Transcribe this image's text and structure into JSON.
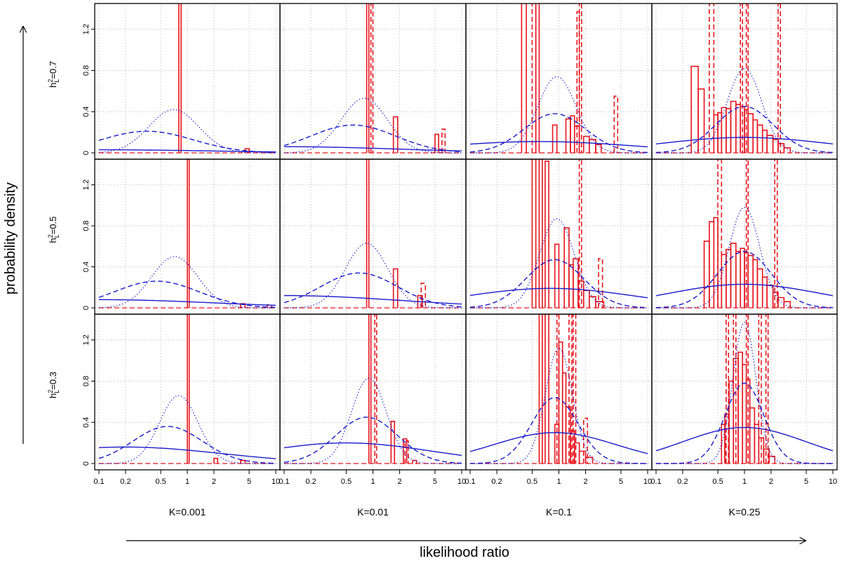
{
  "chart_data": {
    "type": "histogram-grid",
    "xlabel": "likelihood ratio",
    "ylabel": "probability density",
    "x_scale": "log",
    "xlim": [
      0.1,
      10
    ],
    "ylim": [
      0,
      1.45
    ],
    "x_ticks": [
      0.1,
      0.2,
      0.5,
      1,
      2,
      5,
      10
    ],
    "x_tick_labels": [
      "0.1",
      "0.2",
      "0.5",
      "1",
      "2",
      "5",
      "10"
    ],
    "y_ticks": [
      0,
      0.4,
      0.8,
      1.2
    ],
    "y_tick_labels": [
      "0",
      "0.4",
      "0.8",
      "1.2"
    ],
    "grid": true,
    "columns": [
      {
        "label": "K=0.001",
        "K": 0.001
      },
      {
        "label": "K=0.01",
        "K": 0.01
      },
      {
        "label": "K=0.1",
        "K": 0.1
      },
      {
        "label": "K=0.25",
        "K": 0.25
      }
    ],
    "rows": [
      {
        "label_base": "h",
        "label_sup": "2",
        "label_sub": "L",
        "label_value": "=0.7",
        "h2": 0.7
      },
      {
        "label_base": "h",
        "label_sup": "2",
        "label_sub": "L",
        "label_value": "=0.5",
        "h2": 0.5
      },
      {
        "label_base": "h",
        "label_sup": "2",
        "label_sub": "L",
        "label_value": "=0.3",
        "h2": 0.3
      }
    ],
    "colors": {
      "histogram": "#e8141c",
      "curve": "#1a1acc",
      "grid": "#9a9a9a"
    },
    "series_styles": [
      {
        "curve": "solid",
        "histogram": "solid"
      },
      {
        "curve": "dashed",
        "histogram": "dashed"
      },
      {
        "curve": "dotted"
      }
    ],
    "panels": [
      {
        "row": 0,
        "col": 0,
        "curves": [
          {
            "style": "dotted",
            "peak_x": 0.7,
            "peak_y": 0.42,
            "sigma": 0.65
          },
          {
            "style": "dashed",
            "peak_x": 0.35,
            "peak_y": 0.21,
            "sigma": 1.2
          },
          {
            "style": "solid",
            "peak_x": 0.1,
            "peak_y": 0.03,
            "sigma": 3.0
          }
        ],
        "hist_solid": [
          {
            "x0": 0.8,
            "x1": 0.85,
            "y": 1.5
          },
          {
            "x0": 4.5,
            "x1": 5,
            "y": 0.04
          }
        ],
        "hist_dashed": [
          {
            "x0": 4.5,
            "x1": 5,
            "y": 0.04
          }
        ]
      },
      {
        "row": 0,
        "col": 1,
        "curves": [
          {
            "style": "dotted",
            "peak_x": 0.8,
            "peak_y": 0.53,
            "sigma": 0.6
          },
          {
            "style": "dashed",
            "peak_x": 0.6,
            "peak_y": 0.27,
            "sigma": 1.1
          },
          {
            "style": "solid",
            "peak_x": 0.1,
            "peak_y": 0.06,
            "sigma": 3.0
          }
        ],
        "hist_solid": [
          {
            "x0": 0.85,
            "x1": 0.9,
            "y": 1.5
          },
          {
            "x0": 1.7,
            "x1": 1.9,
            "y": 0.35
          },
          {
            "x0": 5,
            "x1": 5.5,
            "y": 0.18
          }
        ],
        "hist_dashed": [
          {
            "x0": 0.95,
            "x1": 1.0,
            "y": 1.5
          },
          {
            "x0": 6,
            "x1": 6.5,
            "y": 0.23
          }
        ]
      },
      {
        "row": 0,
        "col": 2,
        "curves": [
          {
            "style": "dotted",
            "peak_x": 0.95,
            "peak_y": 0.74,
            "sigma": 0.5
          },
          {
            "style": "dashed",
            "peak_x": 0.9,
            "peak_y": 0.38,
            "sigma": 0.8
          },
          {
            "style": "solid",
            "peak_x": 0.6,
            "peak_y": 0.11,
            "sigma": 2.5
          }
        ],
        "hist_solid": [
          {
            "x0": 0.38,
            "x1": 0.43,
            "y": 1.5
          },
          {
            "x0": 0.55,
            "x1": 0.6,
            "y": 1.5
          },
          {
            "x0": 0.85,
            "x1": 0.95,
            "y": 0.27
          },
          {
            "x0": 1.2,
            "x1": 1.35,
            "y": 0.33
          },
          {
            "x0": 1.35,
            "x1": 1.5,
            "y": 0.36
          },
          {
            "x0": 1.5,
            "x1": 1.7,
            "y": 0.26
          },
          {
            "x0": 1.9,
            "x1": 2.2,
            "y": 0.16
          },
          {
            "x0": 2.2,
            "x1": 2.6,
            "y": 0.13
          },
          {
            "x0": 2.6,
            "x1": 3.0,
            "y": 0.08
          }
        ],
        "hist_dashed": [
          {
            "x0": 0.5,
            "x1": 0.55,
            "y": 1.5
          },
          {
            "x0": 1.6,
            "x1": 1.7,
            "y": 1.37
          },
          {
            "x0": 1.7,
            "x1": 1.8,
            "y": 1.5
          },
          {
            "x0": 4.2,
            "x1": 4.6,
            "y": 0.55
          }
        ]
      },
      {
        "row": 0,
        "col": 3,
        "curves": [
          {
            "style": "dotted",
            "peak_x": 1.0,
            "peak_y": 0.82,
            "sigma": 0.45
          },
          {
            "style": "dashed",
            "peak_x": 1.0,
            "peak_y": 0.45,
            "sigma": 0.75
          },
          {
            "style": "solid",
            "peak_x": 1.0,
            "peak_y": 0.15,
            "sigma": 2.2
          }
        ],
        "hist_solid": [
          {
            "x0": 0.25,
            "x1": 0.3,
            "y": 0.84
          },
          {
            "x0": 0.3,
            "x1": 0.35,
            "y": 0.62
          },
          {
            "x0": 0.45,
            "x1": 0.5,
            "y": 0.37
          },
          {
            "x0": 0.5,
            "x1": 0.55,
            "y": 0.39
          },
          {
            "x0": 0.55,
            "x1": 0.62,
            "y": 0.44
          },
          {
            "x0": 0.62,
            "x1": 0.7,
            "y": 0.43
          },
          {
            "x0": 0.7,
            "x1": 0.8,
            "y": 0.5
          },
          {
            "x0": 0.8,
            "x1": 0.9,
            "y": 0.47
          },
          {
            "x0": 0.9,
            "x1": 1.0,
            "y": 0.45
          },
          {
            "x0": 1.0,
            "x1": 1.1,
            "y": 0.42
          },
          {
            "x0": 1.1,
            "x1": 1.25,
            "y": 0.38
          },
          {
            "x0": 1.25,
            "x1": 1.4,
            "y": 0.32
          },
          {
            "x0": 1.4,
            "x1": 1.6,
            "y": 0.27
          },
          {
            "x0": 1.6,
            "x1": 1.8,
            "y": 0.22
          },
          {
            "x0": 1.8,
            "x1": 2.1,
            "y": 0.17
          },
          {
            "x0": 2.1,
            "x1": 2.4,
            "y": 0.13
          },
          {
            "x0": 2.4,
            "x1": 2.8,
            "y": 0.09
          },
          {
            "x0": 2.8,
            "x1": 3.3,
            "y": 0.05
          }
        ],
        "hist_dashed": [
          {
            "x0": 0.4,
            "x1": 0.45,
            "y": 1.5
          },
          {
            "x0": 0.9,
            "x1": 0.95,
            "y": 1.5
          },
          {
            "x0": 1.05,
            "x1": 1.1,
            "y": 1.5
          },
          {
            "x0": 2.4,
            "x1": 2.55,
            "y": 1.5
          }
        ]
      },
      {
        "row": 1,
        "col": 0,
        "curves": [
          {
            "style": "dotted",
            "peak_x": 0.72,
            "peak_y": 0.5,
            "sigma": 0.6
          },
          {
            "style": "dashed",
            "peak_x": 0.45,
            "peak_y": 0.26,
            "sigma": 1.1
          },
          {
            "style": "solid",
            "peak_x": 0.1,
            "peak_y": 0.08,
            "sigma": 3.0
          }
        ],
        "hist_solid": [
          {
            "x0": 1.0,
            "x1": 1.05,
            "y": 1.5
          },
          {
            "x0": 4.0,
            "x1": 4.5,
            "y": 0.04
          }
        ],
        "hist_dashed": [
          {
            "x0": 8.0,
            "x1": 9.0,
            "y": 0.03
          }
        ]
      },
      {
        "row": 1,
        "col": 1,
        "curves": [
          {
            "style": "dotted",
            "peak_x": 0.85,
            "peak_y": 0.63,
            "sigma": 0.55
          },
          {
            "style": "dashed",
            "peak_x": 0.7,
            "peak_y": 0.34,
            "sigma": 1.0
          },
          {
            "style": "solid",
            "peak_x": 0.1,
            "peak_y": 0.12,
            "sigma": 3.0
          }
        ],
        "hist_solid": [
          {
            "x0": 0.85,
            "x1": 0.9,
            "y": 1.5
          },
          {
            "x0": 1.7,
            "x1": 1.9,
            "y": 0.38
          },
          {
            "x0": 3.2,
            "x1": 3.6,
            "y": 0.12
          }
        ],
        "hist_dashed": [
          {
            "x0": 3.5,
            "x1": 3.9,
            "y": 0.24
          }
        ]
      },
      {
        "row": 1,
        "col": 2,
        "curves": [
          {
            "style": "dotted",
            "peak_x": 0.95,
            "peak_y": 0.87,
            "sigma": 0.45
          },
          {
            "style": "dashed",
            "peak_x": 0.9,
            "peak_y": 0.47,
            "sigma": 0.75
          },
          {
            "style": "solid",
            "peak_x": 0.8,
            "peak_y": 0.19,
            "sigma": 2.2
          }
        ],
        "hist_solid": [
          {
            "x0": 0.5,
            "x1": 0.55,
            "y": 1.5
          },
          {
            "x0": 0.6,
            "x1": 0.65,
            "y": 1.5
          },
          {
            "x0": 0.7,
            "x1": 0.77,
            "y": 1.43
          },
          {
            "x0": 0.9,
            "x1": 1.0,
            "y": 0.62
          },
          {
            "x0": 1.15,
            "x1": 1.3,
            "y": 0.78
          },
          {
            "x0": 1.3,
            "x1": 1.45,
            "y": 0.42
          },
          {
            "x0": 1.45,
            "x1": 1.65,
            "y": 0.48
          },
          {
            "x0": 1.65,
            "x1": 1.9,
            "y": 0.26
          },
          {
            "x0": 1.9,
            "x1": 2.2,
            "y": 0.17
          },
          {
            "x0": 2.2,
            "x1": 2.6,
            "y": 0.11
          },
          {
            "x0": 2.6,
            "x1": 3.2,
            "y": 0.06
          }
        ],
        "hist_dashed": [
          {
            "x0": 1.7,
            "x1": 1.8,
            "y": 1.5
          },
          {
            "x0": 2.8,
            "x1": 3.1,
            "y": 0.48
          }
        ]
      },
      {
        "row": 1,
        "col": 3,
        "curves": [
          {
            "style": "dotted",
            "peak_x": 1.0,
            "peak_y": 0.98,
            "sigma": 0.4
          },
          {
            "style": "dashed",
            "peak_x": 1.0,
            "peak_y": 0.55,
            "sigma": 0.7
          },
          {
            "style": "solid",
            "peak_x": 1.0,
            "peak_y": 0.23,
            "sigma": 2.0
          }
        ],
        "hist_solid": [
          {
            "x0": 0.35,
            "x1": 0.4,
            "y": 0.65
          },
          {
            "x0": 0.4,
            "x1": 0.45,
            "y": 0.84
          },
          {
            "x0": 0.45,
            "x1": 0.5,
            "y": 0.88
          },
          {
            "x0": 0.55,
            "x1": 0.62,
            "y": 0.52
          },
          {
            "x0": 0.62,
            "x1": 0.7,
            "y": 0.57
          },
          {
            "x0": 0.7,
            "x1": 0.8,
            "y": 0.63
          },
          {
            "x0": 0.8,
            "x1": 0.9,
            "y": 0.55
          },
          {
            "x0": 0.9,
            "x1": 1.0,
            "y": 0.58
          },
          {
            "x0": 1.0,
            "x1": 1.1,
            "y": 0.54
          },
          {
            "x0": 1.1,
            "x1": 1.25,
            "y": 0.51
          },
          {
            "x0": 1.25,
            "x1": 1.4,
            "y": 0.47
          },
          {
            "x0": 1.4,
            "x1": 1.6,
            "y": 0.38
          },
          {
            "x0": 1.6,
            "x1": 1.8,
            "y": 0.3
          },
          {
            "x0": 1.8,
            "x1": 2.1,
            "y": 0.22
          },
          {
            "x0": 2.1,
            "x1": 2.4,
            "y": 0.15
          },
          {
            "x0": 2.4,
            "x1": 2.8,
            "y": 0.1
          },
          {
            "x0": 2.8,
            "x1": 3.3,
            "y": 0.06
          }
        ],
        "hist_dashed": [
          {
            "x0": 0.5,
            "x1": 0.55,
            "y": 1.5
          },
          {
            "x0": 1.05,
            "x1": 1.1,
            "y": 1.5
          },
          {
            "x0": 2.2,
            "x1": 2.35,
            "y": 1.5
          }
        ]
      },
      {
        "row": 2,
        "col": 0,
        "curves": [
          {
            "style": "dotted",
            "peak_x": 0.8,
            "peak_y": 0.66,
            "sigma": 0.5
          },
          {
            "style": "dashed",
            "peak_x": 0.6,
            "peak_y": 0.36,
            "sigma": 0.9
          },
          {
            "style": "solid",
            "peak_x": 0.2,
            "peak_y": 0.16,
            "sigma": 2.5
          }
        ],
        "hist_solid": [
          {
            "x0": 1.0,
            "x1": 1.05,
            "y": 1.5
          },
          {
            "x0": 2.0,
            "x1": 2.2,
            "y": 0.05
          },
          {
            "x0": 4.0,
            "x1": 4.5,
            "y": 0.03
          }
        ],
        "hist_dashed": []
      },
      {
        "row": 2,
        "col": 1,
        "curves": [
          {
            "style": "dotted",
            "peak_x": 0.9,
            "peak_y": 0.83,
            "sigma": 0.45
          },
          {
            "style": "dashed",
            "peak_x": 0.85,
            "peak_y": 0.45,
            "sigma": 0.8
          },
          {
            "style": "solid",
            "peak_x": 0.5,
            "peak_y": 0.2,
            "sigma": 2.2
          }
        ],
        "hist_solid": [
          {
            "x0": 0.9,
            "x1": 0.95,
            "y": 1.5
          },
          {
            "x0": 1.6,
            "x1": 1.75,
            "y": 0.41
          },
          {
            "x0": 2.2,
            "x1": 2.4,
            "y": 0.24
          },
          {
            "x0": 2.8,
            "x1": 3.1,
            "y": 0.03
          }
        ],
        "hist_dashed": [
          {
            "x0": 1.05,
            "x1": 1.1,
            "y": 1.5
          },
          {
            "x0": 2.3,
            "x1": 2.5,
            "y": 0.22
          }
        ]
      },
      {
        "row": 2,
        "col": 2,
        "curves": [
          {
            "style": "dotted",
            "peak_x": 1.0,
            "peak_y": 1.12,
            "sigma": 0.35
          },
          {
            "style": "dashed",
            "peak_x": 0.9,
            "peak_y": 0.64,
            "sigma": 0.6
          },
          {
            "style": "solid",
            "peak_x": 0.9,
            "peak_y": 0.3,
            "sigma": 1.6
          }
        ],
        "hist_solid": [
          {
            "x0": 0.6,
            "x1": 0.65,
            "y": 1.5
          },
          {
            "x0": 0.7,
            "x1": 0.77,
            "y": 1.5
          },
          {
            "x0": 0.9,
            "x1": 1.0,
            "y": 0.38
          },
          {
            "x0": 1.0,
            "x1": 1.1,
            "y": 1.18
          },
          {
            "x0": 1.1,
            "x1": 1.2,
            "y": 0.88
          },
          {
            "x0": 1.2,
            "x1": 1.35,
            "y": 0.55
          },
          {
            "x0": 1.35,
            "x1": 1.5,
            "y": 0.32
          },
          {
            "x0": 1.5,
            "x1": 1.7,
            "y": 0.2
          },
          {
            "x0": 1.7,
            "x1": 2.0,
            "y": 0.12
          },
          {
            "x0": 2.0,
            "x1": 2.4,
            "y": 0.06
          }
        ],
        "hist_dashed": [
          {
            "x0": 0.95,
            "x1": 1.0,
            "y": 1.5
          },
          {
            "x0": 1.3,
            "x1": 1.4,
            "y": 1.5
          },
          {
            "x0": 1.45,
            "x1": 1.55,
            "y": 1.5
          },
          {
            "x0": 1.9,
            "x1": 2.1,
            "y": 0.44
          }
        ]
      },
      {
        "row": 2,
        "col": 3,
        "curves": [
          {
            "style": "dotted",
            "peak_x": 1.0,
            "peak_y": 1.37,
            "sigma": 0.3
          },
          {
            "style": "dashed",
            "peak_x": 1.0,
            "peak_y": 0.78,
            "sigma": 0.5
          },
          {
            "style": "solid",
            "peak_x": 1.0,
            "peak_y": 0.35,
            "sigma": 1.6
          }
        ],
        "hist_solid": [
          {
            "x0": 0.55,
            "x1": 0.6,
            "y": 0.38
          },
          {
            "x0": 0.6,
            "x1": 0.67,
            "y": 0.48
          },
          {
            "x0": 0.67,
            "x1": 0.75,
            "y": 0.8
          },
          {
            "x0": 0.75,
            "x1": 0.85,
            "y": 1.02
          },
          {
            "x0": 0.85,
            "x1": 0.95,
            "y": 1.08
          },
          {
            "x0": 0.95,
            "x1": 1.05,
            "y": 0.96
          },
          {
            "x0": 1.05,
            "x1": 1.15,
            "y": 0.82
          },
          {
            "x0": 1.15,
            "x1": 1.3,
            "y": 0.54
          },
          {
            "x0": 1.3,
            "x1": 1.45,
            "y": 0.38
          },
          {
            "x0": 1.45,
            "x1": 1.65,
            "y": 0.25
          },
          {
            "x0": 1.65,
            "x1": 1.9,
            "y": 0.14
          },
          {
            "x0": 1.9,
            "x1": 2.2,
            "y": 0.07
          }
        ],
        "hist_dashed": [
          {
            "x0": 0.62,
            "x1": 0.66,
            "y": 1.5
          },
          {
            "x0": 0.75,
            "x1": 0.8,
            "y": 1.5
          },
          {
            "x0": 1.05,
            "x1": 1.1,
            "y": 1.5
          },
          {
            "x0": 1.45,
            "x1": 1.55,
            "y": 1.5
          },
          {
            "x0": 1.75,
            "x1": 1.85,
            "y": 1.5
          }
        ]
      }
    ]
  }
}
